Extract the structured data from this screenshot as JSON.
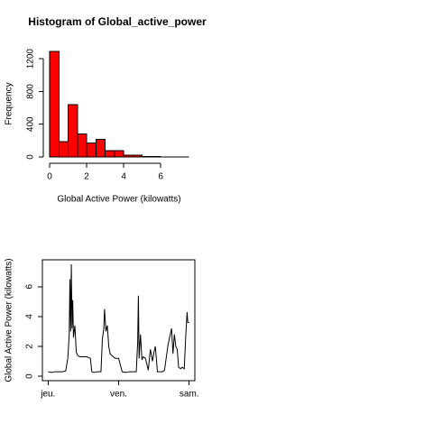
{
  "chart_data": [
    {
      "type": "histogram",
      "title": "Histogram of Global_active_power",
      "xlabel": "Global Active Power (kilowatts)",
      "ylabel": "Frequency",
      "bins": [
        0,
        0.5,
        1,
        1.5,
        2,
        2.5,
        3,
        3.5,
        4,
        4.5,
        5,
        5.5,
        6,
        6.5,
        7,
        7.5
      ],
      "values": [
        1290,
        190,
        640,
        280,
        170,
        215,
        75,
        75,
        20,
        20,
        8,
        3,
        2,
        1,
        1
      ],
      "color": "#ff0000",
      "xlim": [
        0,
        7.5
      ],
      "xticks": [
        0,
        2,
        4,
        6
      ],
      "ylim": [
        0,
        1290
      ],
      "yticks": [
        0,
        400,
        800,
        1200
      ]
    },
    {
      "type": "line",
      "ylabel": "Global Active Power (kilowatts)",
      "x": [
        0,
        0.05,
        0.1,
        0.15,
        0.2,
        0.25,
        0.28,
        0.3,
        0.31,
        0.32,
        0.33,
        0.34,
        0.35,
        0.36,
        0.38,
        0.4,
        0.42,
        0.45,
        0.5,
        0.55,
        0.6,
        0.62,
        0.65,
        0.7,
        0.75,
        0.77,
        0.79,
        0.8,
        0.82,
        0.84,
        0.86,
        0.88,
        0.9,
        0.95,
        1.0,
        1.05,
        1.1,
        1.15,
        1.2,
        1.25,
        1.27,
        1.28,
        1.29,
        1.31,
        1.33,
        1.35,
        1.38,
        1.42,
        1.45,
        1.48,
        1.5,
        1.52,
        1.55,
        1.58,
        1.6,
        1.62,
        1.65,
        1.7,
        1.75,
        1.77,
        1.79,
        1.81,
        1.83,
        1.85,
        1.88,
        1.9,
        1.93,
        1.95,
        1.97,
        1.98,
        2.0
      ],
      "values": [
        0.3,
        0.25,
        0.3,
        0.3,
        0.3,
        0.35,
        1.2,
        2.8,
        6.5,
        3.0,
        7.5,
        3.2,
        5.1,
        2.6,
        3.4,
        1.6,
        1.4,
        1.3,
        1.3,
        1.3,
        1.2,
        0.3,
        0.25,
        0.3,
        0.3,
        2.5,
        3.2,
        4.5,
        3.0,
        3.4,
        2.0,
        1.5,
        1.4,
        1.2,
        1.2,
        0.3,
        0.25,
        0.3,
        0.3,
        0.3,
        2.3,
        5.4,
        1.2,
        2.8,
        1.1,
        1.3,
        1.2,
        0.4,
        1.8,
        1.0,
        1.6,
        2.0,
        0.3,
        0.3,
        0.3,
        0.3,
        0.4,
        2.1,
        3.2,
        1.5,
        2.8,
        2.0,
        1.8,
        0.6,
        0.5,
        0.6,
        0.5,
        2.6,
        4.3,
        3.6,
        3.6
      ],
      "color": "#000000",
      "xlim": [
        -0.08,
        2.08
      ],
      "xticks": [
        {
          "value": 0,
          "label": "jeu."
        },
        {
          "value": 1,
          "label": "ven."
        },
        {
          "value": 2,
          "label": "sam."
        }
      ],
      "ylim": [
        -0.3,
        7.8
      ],
      "yticks": [
        0,
        2,
        4,
        6
      ]
    }
  ]
}
